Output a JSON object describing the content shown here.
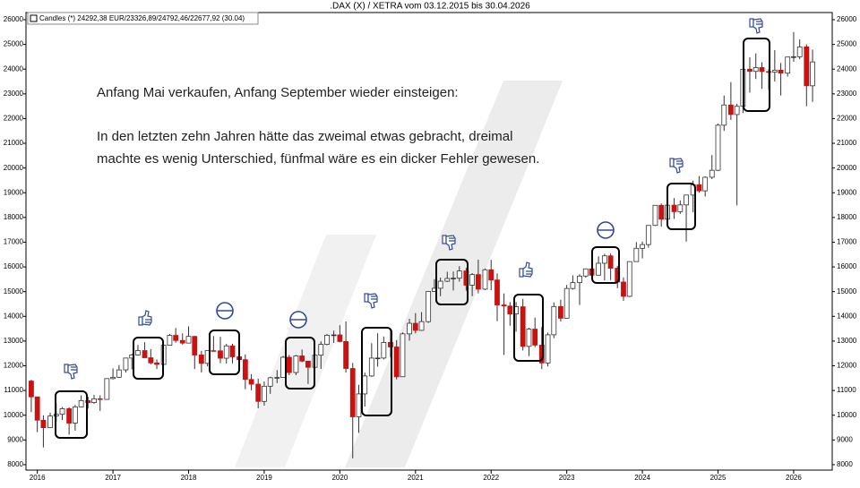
{
  "chart_data": {
    "type": "candlestick",
    "title": ".DAX (X) / XETRA vom 03.12.2015 bis 30.04.2026",
    "legend": "Candles (*) 24292,38 EUR/23326,89/24792,46/22677,92 (30.04)",
    "annotations": [
      "Anfang Mai verkaufen, Anfang September wieder einsteigen:",
      "In den letzten zehn Jahren hätte das zweimal etwas gebracht, dreimal",
      "machte es wenig Unterschied, fünfmal wäre es ein dicker Fehler gewesen."
    ],
    "up_color": "#ffffff",
    "down_color": "#cc1111",
    "xlim": [
      2015.85,
      2026.51
    ],
    "xticks": [
      2016,
      2017,
      2018,
      2019,
      2020,
      2021,
      2022,
      2023,
      2024,
      2025,
      2026
    ],
    "ylim": [
      7780,
      26290
    ],
    "yticks": [
      8000,
      9000,
      10000,
      11000,
      12000,
      13000,
      14000,
      15000,
      16000,
      17000,
      18000,
      19000,
      20000,
      21000,
      22000,
      23000,
      24000,
      25000,
      26000
    ],
    "x": [
      2015.92,
      2016,
      2016.08,
      2016.17,
      2016.25,
      2016.33,
      2016.42,
      2016.5,
      2016.58,
      2016.67,
      2016.75,
      2016.83,
      2016.92,
      2017,
      2017.08,
      2017.17,
      2017.25,
      2017.33,
      2017.42,
      2017.5,
      2017.58,
      2017.67,
      2017.75,
      2017.83,
      2017.92,
      2018,
      2018.08,
      2018.17,
      2018.25,
      2018.33,
      2018.42,
      2018.5,
      2018.58,
      2018.67,
      2018.75,
      2018.83,
      2018.92,
      2019,
      2019.08,
      2019.17,
      2019.25,
      2019.33,
      2019.42,
      2019.5,
      2019.58,
      2019.67,
      2019.75,
      2019.83,
      2019.92,
      2020,
      2020.08,
      2020.17,
      2020.25,
      2020.33,
      2020.42,
      2020.5,
      2020.58,
      2020.67,
      2020.75,
      2020.83,
      2020.92,
      2021,
      2021.08,
      2021.17,
      2021.25,
      2021.33,
      2021.42,
      2021.5,
      2021.58,
      2021.67,
      2021.75,
      2021.83,
      2021.92,
      2022,
      2022.08,
      2022.17,
      2022.25,
      2022.33,
      2022.42,
      2022.5,
      2022.58,
      2022.67,
      2022.75,
      2022.83,
      2022.92,
      2023,
      2023.08,
      2023.17,
      2023.25,
      2023.33,
      2023.42,
      2023.5,
      2023.58,
      2023.67,
      2023.75,
      2023.83,
      2023.92,
      2024,
      2024.08,
      2024.17,
      2024.25,
      2024.33,
      2024.42,
      2024.5,
      2024.58,
      2024.67,
      2024.75,
      2024.83,
      2024.92,
      2025,
      2025.08,
      2025.17,
      2025.25,
      2025.33,
      2025.42,
      2025.5,
      2025.58,
      2025.67,
      2025.75,
      2025.83,
      2025.92,
      2026,
      2026.08,
      2026.17,
      2026.25
    ],
    "open": [
      11382,
      10743,
      9798,
      9495,
      9966,
      10039,
      10263,
      9680,
      10337,
      10593,
      10511,
      10665,
      10640,
      11481,
      11535,
      11834,
      12313,
      12438,
      12615,
      12325,
      12118,
      12055,
      12829,
      13230,
      13024,
      12918,
      13189,
      12436,
      12097,
      12612,
      12605,
      12306,
      12806,
      12364,
      12247,
      11447,
      11257,
      10559,
      11173,
      11516,
      11526,
      12344,
      11727,
      12399,
      12189,
      11939,
      12428,
      12867,
      13236,
      13249,
      12982,
      11890,
      9936,
      10862,
      11587,
      12311,
      12313,
      12945,
      12761,
      11556,
      13291,
      13719,
      13433,
      13786,
      15008,
      15136,
      15421,
      15531,
      15544,
      15835,
      15261,
      15689,
      15100,
      15885,
      15471,
      14461,
      14415,
      14098,
      14388,
      12784,
      13484,
      12835,
      12114,
      13254,
      14397,
      13924,
      15128,
      15365,
      15629,
      15922,
      15664,
      16148,
      16447,
      15947,
      15387,
      14810,
      16215,
      16752,
      16904,
      17678,
      18492,
      17932,
      18498,
      18235,
      18509,
      18907,
      19325,
      19078,
      19626,
      19909,
      21732,
      22551,
      22163,
      22497,
      23997,
      23909,
      24065,
      23902,
      23881,
      23958,
      23837,
      24490,
      24500,
      24900,
      23326
    ],
    "high": [
      11431,
      10744,
      9996,
      10104,
      10486,
      10333,
      10319,
      10418,
      10803,
      10749,
      10826,
      10802,
      11481,
      11893,
      12031,
      12313,
      12487,
      12842,
      12952,
      12676,
      12256,
      12829,
      13283,
      13526,
      13311,
      13597,
      13207,
      12603,
      12612,
      13204,
      13170,
      12887,
      12887,
      12458,
      12460,
      11663,
      11478,
      11369,
      11556,
      11823,
      12402,
      12437,
      12439,
      12656,
      12196,
      12494,
      12989,
      13288,
      13425,
      13640,
      13795,
      12118,
      11231,
      11722,
      12913,
      13314,
      13184,
      13460,
      13043,
      13350,
      13903,
      14131,
      14169,
      15008,
      15502,
      15568,
      15803,
      15811,
      16030,
      15955,
      15749,
      16290,
      15937,
      16285,
      15736,
      14926,
      14573,
      14575,
      14709,
      13533,
      13947,
      13568,
      13344,
      14561,
      14675,
      15270,
      15658,
      15706,
      15925,
      16331,
      16428,
      16529,
      16539,
      16043,
      15575,
      16215,
      17003,
      17025,
      17678,
      18492,
      18567,
      18893,
      18784,
      18691,
      18919,
      19491,
      19675,
      19660,
      20523,
      21800,
      22935,
      23476,
      22600,
      24000,
      24479,
      24639,
      24277,
      24009,
      24771,
      24250,
      24500,
      25500,
      25200,
      25000,
      24792
    ],
    "low": [
      10124,
      9314,
      8699,
      9480,
      9745,
      9806,
      9214,
      9374,
      10320,
      10264,
      10456,
      10174,
      10630,
      11449,
      11510,
      11726,
      11855,
      12416,
      12325,
      12055,
      11868,
      12052,
      12822,
      12937,
      12858,
      12918,
      11868,
      11727,
      11975,
      12603,
      12104,
      12090,
      12100,
      11865,
      11051,
      11009,
      10279,
      10387,
      10864,
      11299,
      11519,
      11620,
      11620,
      12145,
      11266,
      11804,
      11874,
      12831,
      12923,
      12948,
      11725,
      8256,
      9286,
      10349,
      11550,
      11965,
      12253,
      12339,
      11450,
      11556,
      13015,
      13310,
      13413,
      13733,
      14997,
      14816,
      15388,
      15048,
      15406,
      15040,
      14819,
      14929,
      15060,
      15060,
      13807,
      12439,
      13618,
      13380,
      12618,
      12391,
      12754,
      11863,
      11976,
      13115,
      13791,
      13924,
      15078,
      14458,
      15561,
      15629,
      15706,
      15456,
      15469,
      15138,
      14630,
      14779,
      16215,
      16345,
      16778,
      17650,
      17626,
      17913,
      17942,
      18144,
      17025,
      18209,
      19000,
      18846,
      19551,
      19879,
      21500,
      21941,
      18490,
      22223,
      23052,
      23602,
      23208,
      23161,
      23502,
      22934,
      23700,
      24300,
      24400,
      22500,
      22677
    ],
    "close": [
      10743,
      9798,
      9495,
      9966,
      10039,
      10263,
      9680,
      10337,
      10593,
      10511,
      10665,
      10640,
      11481,
      11535,
      11834,
      12313,
      12438,
      12615,
      12325,
      12118,
      12055,
      12829,
      13230,
      13024,
      12918,
      13189,
      12436,
      12097,
      12612,
      12605,
      12306,
      12806,
      12364,
      12247,
      11447,
      11257,
      10559,
      11173,
      11516,
      11526,
      12344,
      11727,
      12399,
      12189,
      11939,
      12428,
      12867,
      13236,
      13249,
      12982,
      11890,
      9936,
      10862,
      11587,
      12311,
      12313,
      12945,
      12761,
      11556,
      13291,
      13719,
      13433,
      13786,
      15008,
      15136,
      15421,
      15531,
      15544,
      15835,
      15261,
      15689,
      15100,
      15885,
      15471,
      14461,
      14415,
      14098,
      14388,
      12784,
      13484,
      12835,
      12114,
      13254,
      14397,
      13924,
      15128,
      15365,
      15629,
      15922,
      15664,
      16148,
      16447,
      15947,
      15387,
      14810,
      16215,
      16752,
      16904,
      17678,
      18492,
      17932,
      18498,
      18235,
      18509,
      18907,
      19325,
      19078,
      19626,
      19909,
      21732,
      22551,
      22163,
      22497,
      23997,
      23909,
      24065,
      23902,
      23881,
      23958,
      23837,
      24490,
      24500,
      24900,
      23326,
      24292
    ]
  }
}
